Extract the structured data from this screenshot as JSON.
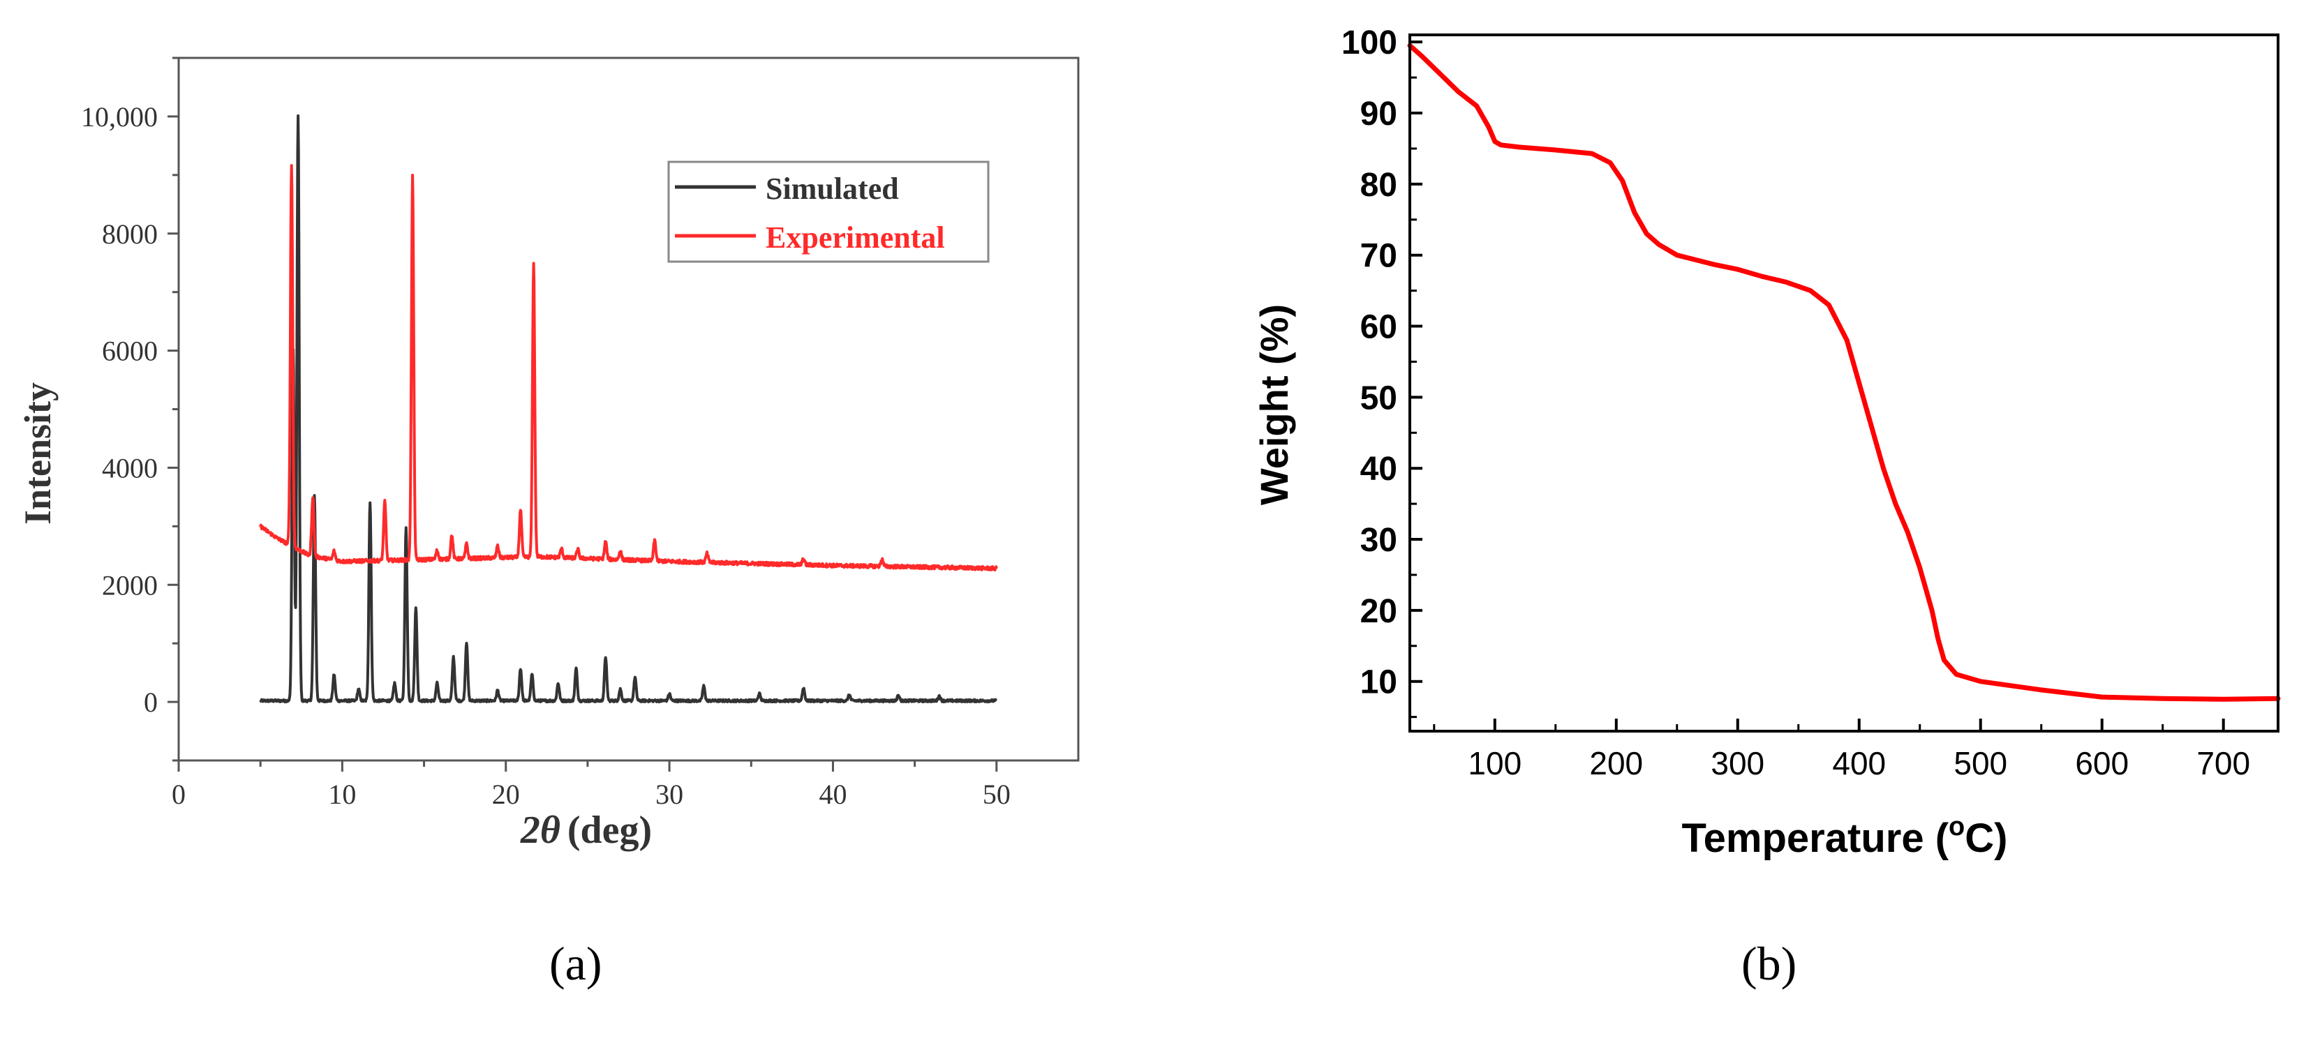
{
  "figure": {
    "panel_a_label": "(a)",
    "panel_b_label": "(b)"
  },
  "chart_data": [
    {
      "id": "a",
      "type": "line",
      "title": "",
      "xlabel": "2θ (deg)",
      "xlabel_symbol": "2θ",
      "xlabel_unit": "(deg)",
      "ylabel": "Intensity",
      "xlim": [
        0,
        55
      ],
      "ylim": [
        -1000,
        11000
      ],
      "xticks": [
        0,
        10,
        20,
        30,
        40,
        50
      ],
      "yticks": [
        0,
        2000,
        4000,
        6000,
        8000,
        10000
      ],
      "ytick_labels": [
        "0",
        "2000",
        "4000",
        "6000",
        "8000",
        "10,000"
      ],
      "legend": {
        "position": "top-right",
        "entries": [
          "Simulated",
          "Experimental"
        ]
      },
      "series": [
        {
          "name": "Simulated",
          "color": "#333333",
          "baseline": 20,
          "x_range": [
            5,
            50
          ],
          "noise": 20,
          "peaks": [
            [
              7.0,
              6000
            ],
            [
              7.3,
              10000
            ],
            [
              8.3,
              3500
            ],
            [
              9.5,
              450
            ],
            [
              11.0,
              200
            ],
            [
              11.7,
              3400
            ],
            [
              13.2,
              300
            ],
            [
              13.9,
              2950
            ],
            [
              14.5,
              1600
            ],
            [
              15.8,
              300
            ],
            [
              16.8,
              750
            ],
            [
              17.6,
              1000
            ],
            [
              19.5,
              180
            ],
            [
              20.9,
              550
            ],
            [
              21.6,
              450
            ],
            [
              23.2,
              300
            ],
            [
              24.3,
              550
            ],
            [
              26.1,
              750
            ],
            [
              27.0,
              200
            ],
            [
              27.9,
              400
            ],
            [
              30.0,
              120
            ],
            [
              32.1,
              250
            ],
            [
              35.5,
              120
            ],
            [
              38.2,
              220
            ],
            [
              41.0,
              100
            ],
            [
              44.0,
              90
            ],
            [
              46.5,
              80
            ]
          ]
        },
        {
          "name": "Experimental",
          "color": "#ff2a2a",
          "baseline_points": [
            [
              5,
              3000
            ],
            [
              6,
              2800
            ],
            [
              8,
              2500
            ],
            [
              10,
              2400
            ],
            [
              15,
              2430
            ],
            [
              22,
              2480
            ],
            [
              30,
              2400
            ],
            [
              40,
              2330
            ],
            [
              50,
              2280
            ]
          ],
          "x_range": [
            5,
            50
          ],
          "noise": 30,
          "peaks": [
            [
              6.9,
              6500
            ],
            [
              8.2,
              1000
            ],
            [
              9.5,
              150
            ],
            [
              12.6,
              1000
            ],
            [
              14.3,
              6550
            ],
            [
              15.8,
              150
            ],
            [
              16.7,
              400
            ],
            [
              17.6,
              250
            ],
            [
              19.5,
              200
            ],
            [
              20.9,
              800
            ],
            [
              21.7,
              5000
            ],
            [
              23.4,
              150
            ],
            [
              24.4,
              150
            ],
            [
              26.1,
              300
            ],
            [
              27.0,
              150
            ],
            [
              29.1,
              350
            ],
            [
              32.3,
              150
            ],
            [
              38.2,
              100
            ],
            [
              43.0,
              120
            ]
          ]
        }
      ]
    },
    {
      "id": "b",
      "type": "line",
      "title": "",
      "xlabel": "Temperature (°C)",
      "xlabel_main": "Temperature (",
      "xlabel_deg": "o",
      "xlabel_end": "C)",
      "ylabel": "Weight (%)",
      "xlim": [
        30,
        745
      ],
      "ylim": [
        3,
        101
      ],
      "xticks": [
        100,
        200,
        300,
        400,
        500,
        600,
        700
      ],
      "yticks": [
        10,
        20,
        30,
        40,
        50,
        60,
        70,
        80,
        90,
        100
      ],
      "series": [
        {
          "name": "Weight",
          "color": "#ff0000",
          "x": [
            30,
            40,
            55,
            70,
            85,
            95,
            100,
            105,
            120,
            150,
            180,
            195,
            205,
            215,
            225,
            235,
            250,
            280,
            300,
            320,
            340,
            360,
            375,
            390,
            400,
            410,
            420,
            430,
            440,
            450,
            460,
            465,
            470,
            475,
            480,
            500,
            550,
            600,
            650,
            700,
            745
          ],
          "y": [
            99.5,
            98,
            95.5,
            93,
            91,
            88,
            86,
            85.5,
            85.2,
            84.8,
            84.3,
            83,
            80.5,
            76,
            73,
            71.5,
            70,
            68.7,
            68,
            67,
            66.2,
            65,
            63,
            58,
            52,
            46,
            40,
            35,
            31,
            26,
            20,
            16,
            13,
            12,
            11,
            10,
            8.8,
            7.8,
            7.6,
            7.5,
            7.6
          ]
        }
      ]
    }
  ]
}
